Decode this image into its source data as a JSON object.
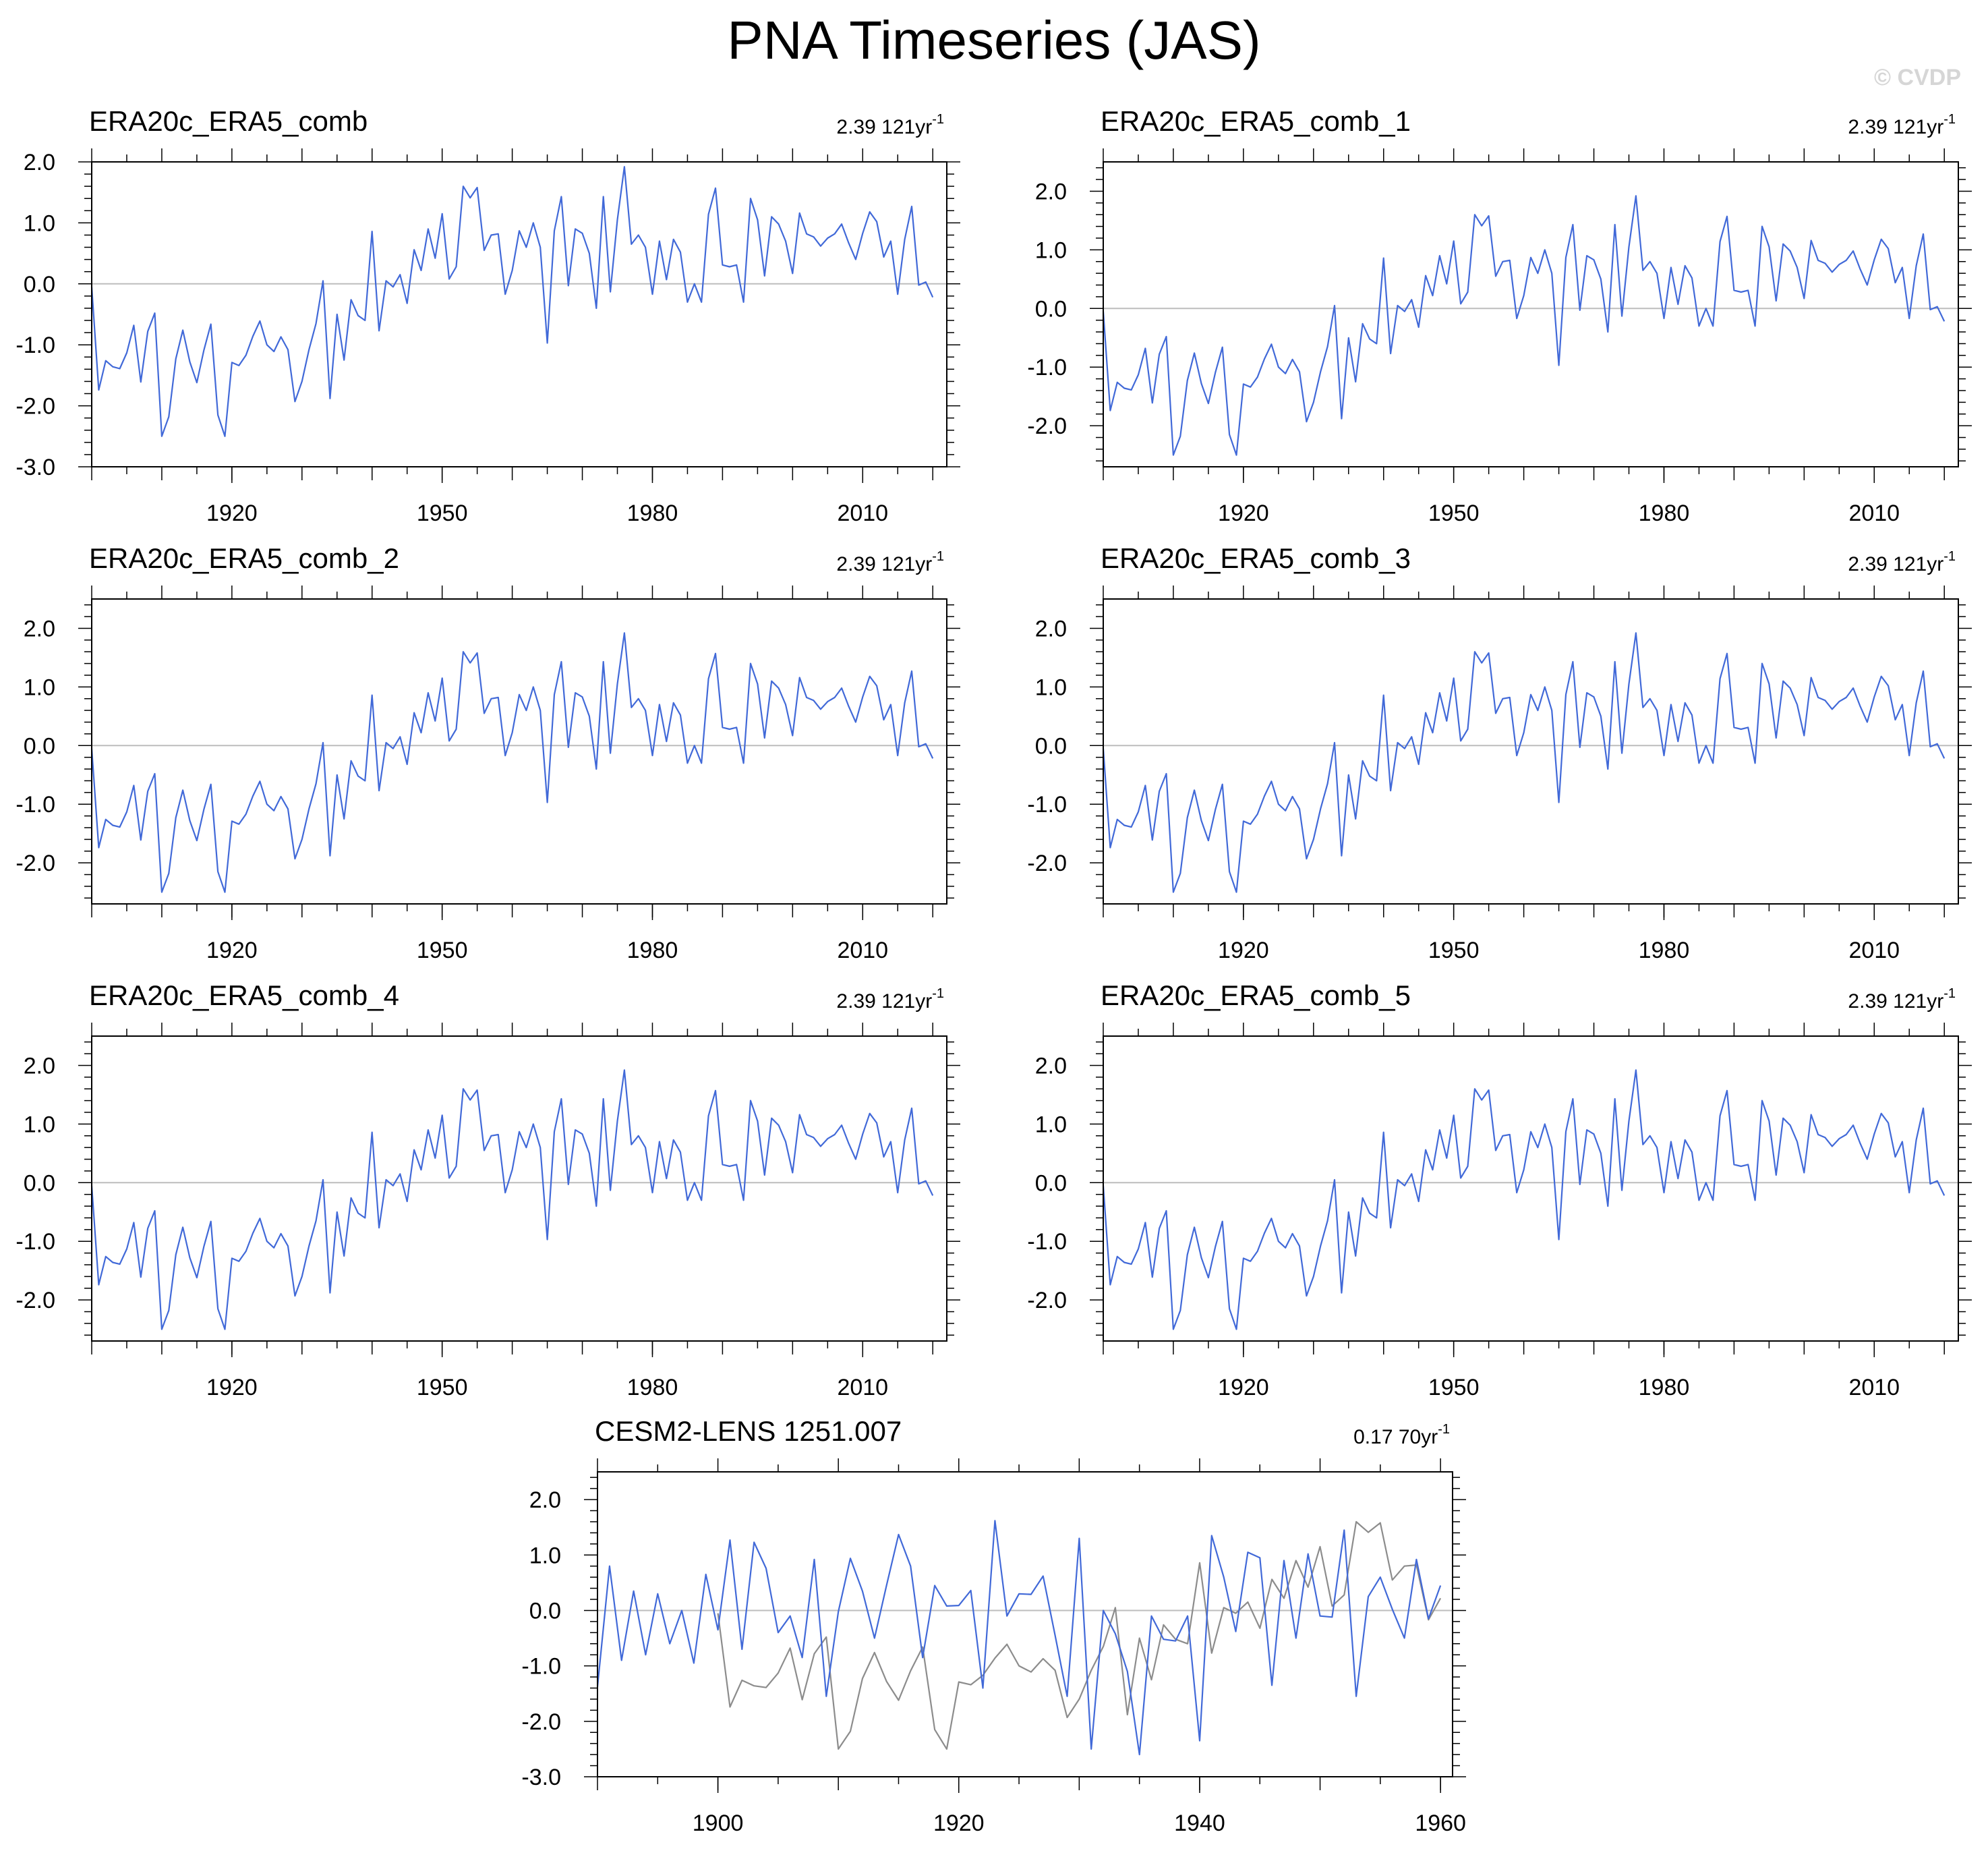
{
  "title": "PNA Timeseries (JAS)",
  "watermark": "© CVDP",
  "obs_values": [
    -0.05,
    -1.74,
    -1.26,
    -1.36,
    -1.39,
    -1.13,
    -0.68,
    -1.61,
    -0.78,
    -0.48,
    -2.5,
    -2.18,
    -1.23,
    -0.76,
    -1.28,
    -1.62,
    -1.09,
    -0.66,
    -2.15,
    -2.5,
    -1.29,
    -1.34,
    -1.17,
    -0.86,
    -0.61,
    -1.0,
    -1.11,
    -0.87,
    -1.08,
    -1.93,
    -1.6,
    -1.08,
    -0.65,
    0.05,
    -1.88,
    -0.5,
    -1.25,
    -0.26,
    -0.52,
    -0.6,
    0.86,
    -0.77,
    0.05,
    -0.05,
    0.15,
    -0.32,
    0.56,
    0.22,
    0.9,
    0.42,
    1.15,
    0.08,
    0.28,
    1.6,
    1.41,
    1.58,
    0.55,
    0.8,
    0.82,
    -0.17,
    0.22,
    0.87,
    0.6,
    1.0,
    0.6,
    -0.97,
    0.87,
    1.43,
    -0.03,
    0.9,
    0.83,
    0.5,
    -0.4,
    1.43,
    -0.13,
    1.05,
    1.92,
    0.65,
    0.8,
    0.6,
    -0.17,
    0.7,
    0.07,
    0.73,
    0.52,
    -0.3,
    0.0,
    -0.3,
    1.14,
    1.57,
    0.31,
    0.28,
    0.31,
    -0.3,
    1.4,
    1.05,
    0.13,
    1.1,
    0.98,
    0.7,
    0.17,
    1.16,
    0.82,
    0.77,
    0.62,
    0.75,
    0.82,
    0.98,
    0.67,
    0.4,
    0.83,
    1.18,
    1.02,
    0.44,
    0.7,
    -0.17,
    0.73,
    1.27,
    -0.02,
    0.03,
    -0.22
  ],
  "model_values": [
    -1.38,
    0.8,
    -0.9,
    0.35,
    -0.8,
    0.3,
    -0.6,
    0.0,
    -0.95,
    0.65,
    -0.35,
    1.27,
    -0.7,
    1.23,
    0.76,
    -0.4,
    -0.1,
    -0.85,
    0.92,
    -1.55,
    -0.02,
    0.94,
    0.35,
    -0.5,
    0.45,
    1.37,
    0.8,
    -0.85,
    0.45,
    0.08,
    0.09,
    0.36,
    -1.4,
    1.62,
    -0.1,
    0.3,
    0.29,
    0.62,
    -0.45,
    -1.55,
    1.3,
    -2.5,
    0.0,
    -0.42,
    -1.1,
    -2.6,
    -0.1,
    -0.52,
    -0.55,
    -0.1,
    -2.35,
    1.35,
    0.6,
    -0.38,
    1.05,
    0.95,
    -1.35,
    0.9,
    -0.5,
    1.02,
    -0.1,
    -0.12,
    1.45,
    -1.55,
    0.25,
    0.6,
    0.02,
    -0.5,
    0.92,
    -0.15,
    0.45
  ],
  "panels": [
    {
      "title": "ERA20c_ERA5_comb",
      "trend": "2.39 121yr",
      "trend_sup": "-1",
      "chart_data": {
        "type": "line",
        "title": "ERA20c_ERA5_comb",
        "annotation": "2.39 121yr-1",
        "x_start": 1900,
        "x_end": 2020,
        "xlim": [
          1900,
          2022
        ],
        "ylim": [
          -3.0,
          2.0
        ],
        "yticks": [
          "2.0",
          "1.0",
          "0.0",
          "-1.0",
          "-2.0",
          "-3.0"
        ],
        "xticks": [
          "1920",
          "1950",
          "1980",
          "2010"
        ],
        "series": [
          {
            "color": "#4169d8",
            "ref": "obs_values"
          }
        ]
      }
    },
    {
      "title": "ERA20c_ERA5_comb_1",
      "trend": "2.39 121yr",
      "trend_sup": "-1",
      "chart_data": {
        "type": "line",
        "title": "ERA20c_ERA5_comb_1",
        "annotation": "2.39 121yr-1",
        "x_start": 1900,
        "x_end": 2020,
        "xlim": [
          1900,
          2022
        ],
        "ylim": [
          -2.7,
          2.5
        ],
        "yticks": [
          "2.0",
          "1.0",
          "0.0",
          "-1.0",
          "-2.0"
        ],
        "xticks": [
          "1920",
          "1950",
          "1980",
          "2010"
        ],
        "series": [
          {
            "color": "#4169d8",
            "ref": "obs_values"
          }
        ]
      }
    },
    {
      "title": "ERA20c_ERA5_comb_2",
      "trend": "2.39 121yr",
      "trend_sup": "-1",
      "chart_data": {
        "type": "line",
        "title": "ERA20c_ERA5_comb_2",
        "annotation": "2.39 121yr-1",
        "x_start": 1900,
        "x_end": 2020,
        "xlim": [
          1900,
          2022
        ],
        "ylim": [
          -2.7,
          2.5
        ],
        "yticks": [
          "2.0",
          "1.0",
          "0.0",
          "-1.0",
          "-2.0"
        ],
        "xticks": [
          "1920",
          "1950",
          "1980",
          "2010"
        ],
        "series": [
          {
            "color": "#4169d8",
            "ref": "obs_values"
          }
        ]
      }
    },
    {
      "title": "ERA20c_ERA5_comb_3",
      "trend": "2.39 121yr",
      "trend_sup": "-1",
      "chart_data": {
        "type": "line",
        "title": "ERA20c_ERA5_comb_3",
        "annotation": "2.39 121yr-1",
        "x_start": 1900,
        "x_end": 2020,
        "xlim": [
          1900,
          2022
        ],
        "ylim": [
          -2.7,
          2.5
        ],
        "yticks": [
          "2.0",
          "1.0",
          "0.0",
          "-1.0",
          "-2.0"
        ],
        "xticks": [
          "1920",
          "1950",
          "1980",
          "2010"
        ],
        "series": [
          {
            "color": "#4169d8",
            "ref": "obs_values"
          }
        ]
      }
    },
    {
      "title": "ERA20c_ERA5_comb_4",
      "trend": "2.39 121yr",
      "trend_sup": "-1",
      "chart_data": {
        "type": "line",
        "title": "ERA20c_ERA5_comb_4",
        "annotation": "2.39 121yr-1",
        "x_start": 1900,
        "x_end": 2020,
        "xlim": [
          1900,
          2022
        ],
        "ylim": [
          -2.7,
          2.5
        ],
        "yticks": [
          "2.0",
          "1.0",
          "0.0",
          "-1.0",
          "-2.0"
        ],
        "xticks": [
          "1920",
          "1950",
          "1980",
          "2010"
        ],
        "series": [
          {
            "color": "#4169d8",
            "ref": "obs_values"
          }
        ]
      }
    },
    {
      "title": "ERA20c_ERA5_comb_5",
      "trend": "2.39 121yr",
      "trend_sup": "-1",
      "chart_data": {
        "type": "line",
        "title": "ERA20c_ERA5_comb_5",
        "annotation": "2.39 121yr-1",
        "x_start": 1900,
        "x_end": 2020,
        "xlim": [
          1900,
          2022
        ],
        "ylim": [
          -2.7,
          2.5
        ],
        "yticks": [
          "2.0",
          "1.0",
          "0.0",
          "-1.0",
          "-2.0"
        ],
        "xticks": [
          "1920",
          "1950",
          "1980",
          "2010"
        ],
        "series": [
          {
            "color": "#4169d8",
            "ref": "obs_values"
          }
        ]
      }
    },
    {
      "title": "CESM2-LENS 1251.007",
      "trend": "0.17 70yr",
      "trend_sup": "-1",
      "chart_data": {
        "type": "line",
        "title": "CESM2-LENS 1251.007",
        "annotation": "0.17 70yr-1",
        "xlim": [
          1890,
          1961
        ],
        "ylim": [
          -3.0,
          2.5
        ],
        "yticks": [
          "2.0",
          "1.0",
          "0.0",
          "-1.0",
          "-2.0",
          "-3.0"
        ],
        "xticks": [
          "1900",
          "1920",
          "1940",
          "1960"
        ],
        "series": [
          {
            "color": "#4169d8",
            "ref": "model_values",
            "x_start": 1890,
            "x_end": 1960
          },
          {
            "color": "#8c8c8c",
            "ref": "obs_values",
            "x_start": 1900,
            "x_end": 1960
          }
        ]
      }
    }
  ]
}
